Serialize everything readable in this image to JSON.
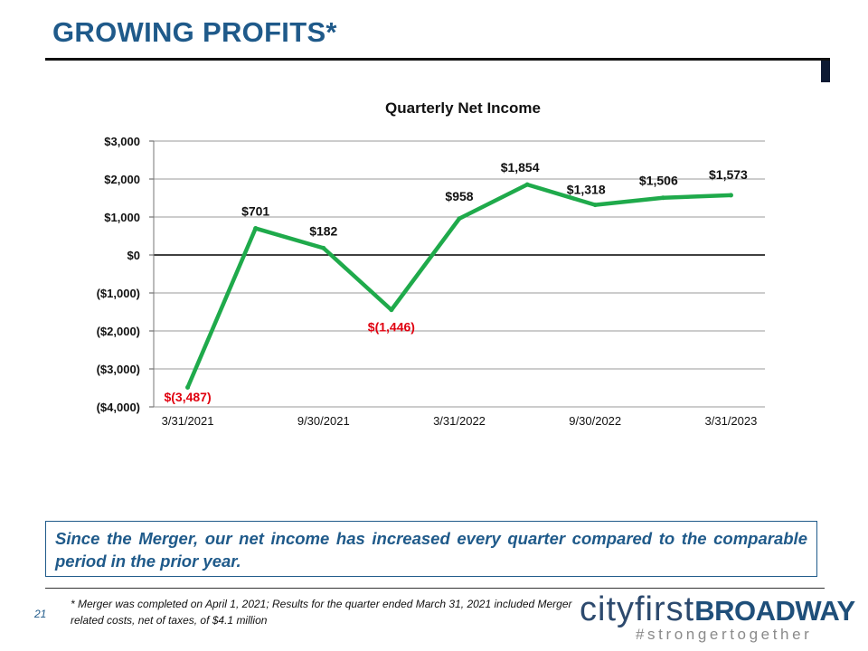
{
  "slide": {
    "title": "GROWING PROFITS*",
    "callout": "Since the Merger, our net income has increased every quarter compared to the comparable period in the prior year.",
    "page_number": "21",
    "footnote": "* Merger was completed on April 1, 2021; Results for the quarter ended March 31, 2021 included Merger related costs, net of taxes, of $4.1 million"
  },
  "logo": {
    "part1": "cityfirst",
    "part2": "BROADWAY",
    "tagline": "#strongertogether"
  },
  "colors": {
    "title": "#1f5a8a",
    "line": "#1faa4b",
    "negative_label": "#e0000f",
    "positive_label": "#111111"
  },
  "chart_data": {
    "type": "line",
    "title": "Quarterly Net Income",
    "xlabel": "",
    "ylabel": "",
    "ylim": [
      -4000,
      3000
    ],
    "y_ticks": [
      3000,
      2000,
      1000,
      0,
      -1000,
      -2000,
      -3000,
      -4000
    ],
    "y_tick_labels": [
      "$3,000",
      "$2,000",
      "$1,000",
      "$0",
      "($1,000)",
      "($2,000)",
      "($3,000)",
      "($4,000)"
    ],
    "x_tick_labels": [
      "3/31/2021",
      "9/30/2021",
      "3/31/2022",
      "9/30/2022",
      "3/31/2023"
    ],
    "x_tick_indices": [
      0,
      2,
      4,
      6,
      8
    ],
    "grid": true,
    "legend": "none",
    "series": [
      {
        "name": "Quarterly Net Income",
        "x": [
          "3/31/2021",
          "6/30/2021",
          "9/30/2021",
          "12/31/2021",
          "3/31/2022",
          "6/30/2022",
          "9/30/2022",
          "12/31/2022",
          "3/31/2023"
        ],
        "values": [
          -3487,
          701,
          182,
          -1446,
          958,
          1854,
          1318,
          1506,
          1573
        ],
        "labels": [
          "$(3,487)",
          "$701",
          "$182",
          "$(1,446)",
          "$958",
          "$1,854",
          "$1,318",
          "$1,506",
          "$1,573"
        ]
      }
    ]
  }
}
